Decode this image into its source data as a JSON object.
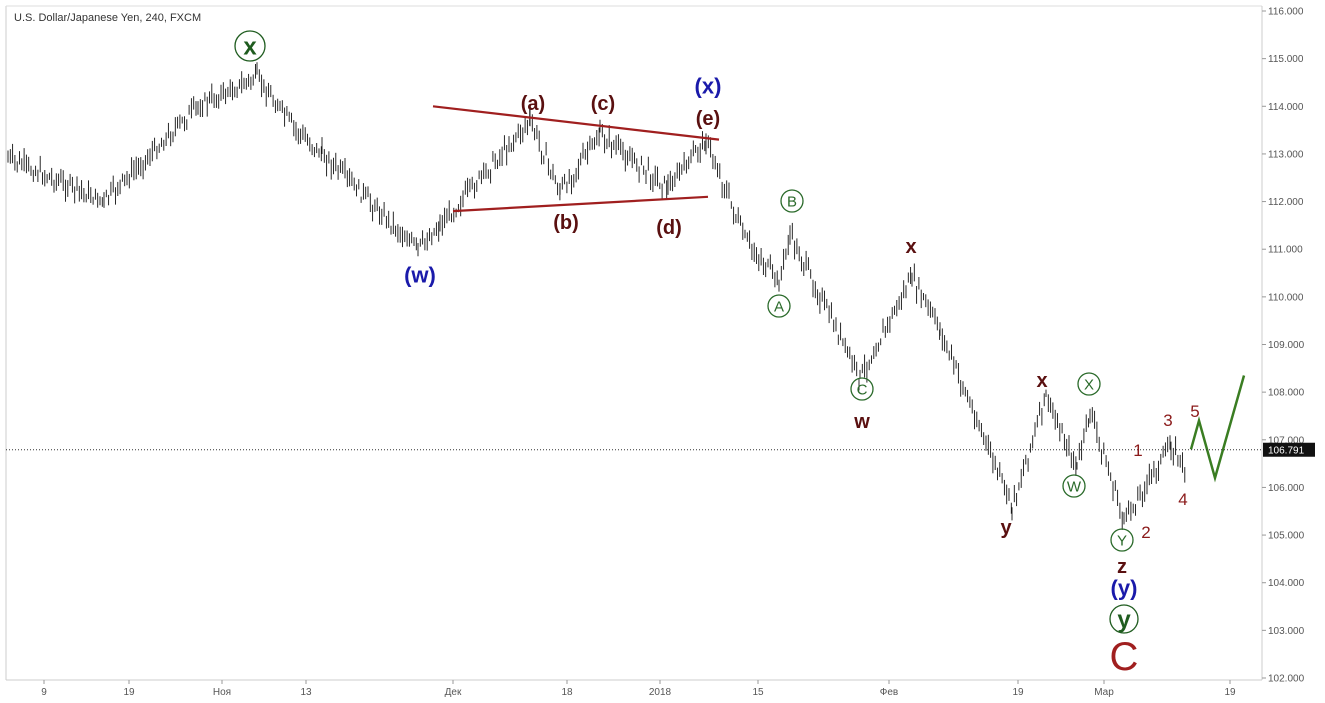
{
  "chart_data": {
    "type": "line",
    "title": "U.S. Dollar/Japanese Yen, 240, FXCM",
    "ylim": [
      102.0,
      116.0
    ],
    "y_ticks": [
      "116.000",
      "115.000",
      "114.000",
      "113.000",
      "112.000",
      "111.000",
      "110.000",
      "109.000",
      "108.000",
      "107.000",
      "106.000",
      "105.000",
      "104.000",
      "103.000",
      "102.000"
    ],
    "x_ticks": [
      "9",
      "19",
      "Ноя",
      "13",
      "Дек",
      "18",
      "2018",
      "15",
      "Фев",
      "19",
      "Мар",
      "19"
    ],
    "current_price": {
      "label": "106.791",
      "value": 106.791
    },
    "series": [
      {
        "points": [
          [
            "9",
            112.9
          ],
          [
            "19",
            112.0
          ],
          [
            "Ноя",
            114.0
          ],
          [
            "Ноя",
            114.6
          ],
          [
            "13",
            113.5
          ],
          [
            "13",
            113.0
          ],
          [
            "Дек",
            111.0
          ],
          [
            "Дек",
            111.5
          ],
          [
            "18",
            113.7
          ],
          [
            "18",
            112.2
          ],
          [
            "18",
            113.4
          ],
          [
            "2018",
            112.3
          ],
          [
            "2018",
            113.3
          ],
          [
            "2018",
            111.2
          ],
          [
            "15",
            110.3
          ],
          [
            "15",
            111.3
          ],
          [
            "15",
            108.3
          ],
          [
            "Фев",
            110.4
          ],
          [
            "Фев",
            109.3
          ],
          [
            "19",
            105.6
          ],
          [
            "19",
            107.9
          ],
          [
            "19",
            106.4
          ],
          [
            "Мар",
            107.6
          ],
          [
            "Мар",
            105.3
          ],
          [
            "Мар",
            106.9
          ],
          [
            "Мар",
            106.3
          ]
        ]
      }
    ],
    "projection": {
      "points": [
        [
          "Мар",
          106.8
        ],
        [
          "Мар",
          107.4
        ],
        [
          "19",
          106.2
        ],
        [
          "19",
          108.35
        ]
      ],
      "color": "#3a7d22"
    },
    "trendlines": [
      {
        "from": [
          "Дек",
          114.0
        ],
        "to": [
          "2018",
          113.3
        ],
        "color": "#a01f1f"
      },
      {
        "from": [
          "Дек",
          111.8
        ],
        "to": [
          "2018",
          112.1
        ],
        "color": "#a01f1f"
      }
    ],
    "annotations": [
      {
        "text": "x",
        "color": "#1f5c1f",
        "circled": true
      },
      {
        "text": "(w)",
        "color": "#1a1aaa"
      },
      {
        "text": "(a)",
        "color": "#5a1010"
      },
      {
        "text": "(b)",
        "color": "#5a1010"
      },
      {
        "text": "(c)",
        "color": "#5a1010"
      },
      {
        "text": "(d)",
        "color": "#5a1010"
      },
      {
        "text": "(e)",
        "color": "#5a1010"
      },
      {
        "text": "(x)",
        "color": "#1a1aaa"
      },
      {
        "text": "B",
        "color": "#2a6a2a",
        "circled": true
      },
      {
        "text": "A",
        "color": "#2a6a2a",
        "circled": true
      },
      {
        "text": "C",
        "color": "#2a6a2a",
        "circled": true
      },
      {
        "text": "w",
        "color": "#5a1010"
      },
      {
        "text": "x",
        "color": "#5a1010"
      },
      {
        "text": "y",
        "color": "#5a1010"
      },
      {
        "text": "x",
        "color": "#5a1010"
      },
      {
        "text": "X",
        "color": "#2a6a2a",
        "circled": true
      },
      {
        "text": "W",
        "color": "#2a6a2a",
        "circled": true
      },
      {
        "text": "1",
        "color": "#8b1a1a"
      },
      {
        "text": "2",
        "color": "#8b1a1a"
      },
      {
        "text": "3",
        "color": "#8b1a1a"
      },
      {
        "text": "4",
        "color": "#8b1a1a"
      },
      {
        "text": "5",
        "color": "#8b1a1a"
      },
      {
        "text": "Y",
        "color": "#2a6a2a",
        "circled": true
      },
      {
        "text": "z",
        "color": "#5a1010"
      },
      {
        "text": "(y)",
        "color": "#1a1aaa"
      },
      {
        "text": "y",
        "color": "#1f5c1f",
        "circled": true
      },
      {
        "text": "C",
        "color": "#a01f1f"
      }
    ]
  }
}
